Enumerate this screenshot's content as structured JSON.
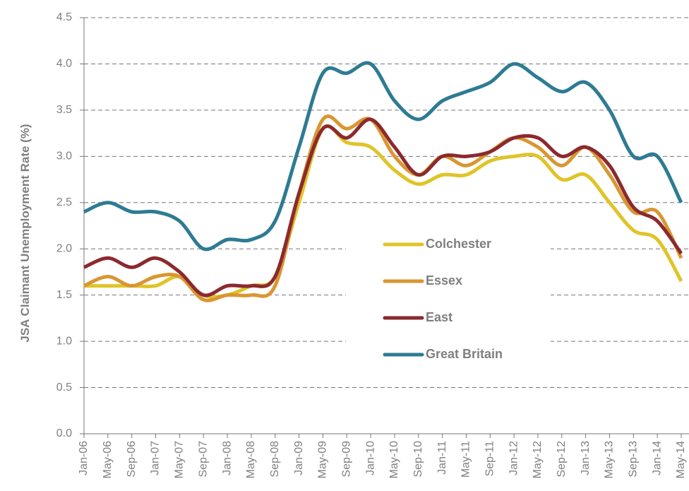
{
  "chart_data": {
    "type": "line",
    "y_label": "JSA Claimant Unemployment Rate (%)",
    "categories": [
      "Jan-06",
      "May-06",
      "Sep-06",
      "Jan-07",
      "May-07",
      "Sep-07",
      "Jan-08",
      "May-08",
      "Sep-08",
      "Jan-09",
      "May-09",
      "Sep-09",
      "Jan-10",
      "May-10",
      "Sep-10",
      "Jan-11",
      "May-11",
      "Sep-11",
      "Jan-12",
      "May-12",
      "Sep-12",
      "Jan-13",
      "May-13",
      "Sep-13",
      "Jan-14",
      "May-14"
    ],
    "series": [
      {
        "name": "Colchester",
        "color": "#e0c428",
        "values": [
          1.6,
          1.6,
          1.6,
          1.6,
          1.7,
          1.5,
          1.5,
          1.6,
          1.7,
          2.5,
          3.3,
          3.15,
          3.1,
          2.85,
          2.7,
          2.8,
          2.8,
          2.95,
          3.0,
          3.0,
          2.75,
          2.8,
          2.5,
          2.2,
          2.1,
          1.65
        ]
      },
      {
        "name": "Essex",
        "color": "#d99632",
        "values": [
          1.6,
          1.7,
          1.6,
          1.7,
          1.7,
          1.45,
          1.5,
          1.5,
          1.6,
          2.6,
          3.4,
          3.3,
          3.4,
          3.0,
          2.8,
          3.0,
          2.9,
          3.05,
          3.2,
          3.1,
          2.9,
          3.1,
          2.8,
          2.4,
          2.4,
          1.9
        ]
      },
      {
        "name": "East",
        "color": "#8b2a2e",
        "values": [
          1.8,
          1.9,
          1.8,
          1.9,
          1.75,
          1.5,
          1.6,
          1.6,
          1.7,
          2.6,
          3.3,
          3.2,
          3.4,
          3.1,
          2.8,
          3.0,
          3.0,
          3.05,
          3.2,
          3.2,
          3.0,
          3.1,
          2.9,
          2.45,
          2.3,
          1.95
        ]
      },
      {
        "name": "Great Britain",
        "color": "#2e7b93",
        "values": [
          2.4,
          2.5,
          2.4,
          2.4,
          2.3,
          2.0,
          2.1,
          2.1,
          2.3,
          3.1,
          3.9,
          3.9,
          4.0,
          3.6,
          3.4,
          3.6,
          3.7,
          3.8,
          4.0,
          3.85,
          3.7,
          3.8,
          3.5,
          3.0,
          3.0,
          2.5
        ]
      }
    ],
    "ylim": [
      0,
      4.5
    ],
    "yticks": [
      {
        "value": 0,
        "label": "0.0"
      },
      0.5,
      {
        "value": 1,
        "label": "1.0"
      },
      1.5,
      {
        "value": 2,
        "label": "2.0"
      },
      2.5,
      {
        "value": 3,
        "label": "3.0"
      },
      3.5,
      {
        "value": 4,
        "label": "4.0"
      },
      4.5
    ],
    "grid": true
  }
}
